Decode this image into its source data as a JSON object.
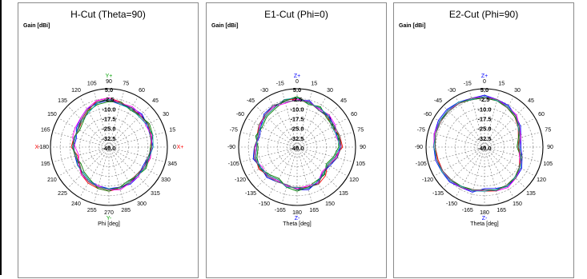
{
  "colors": {
    "series": [
      "#000000",
      "#ff0000",
      "#0000ff",
      "#008000",
      "#ff00ff",
      "#00a0a0",
      "#606060"
    ],
    "grid": "#808080",
    "axis_pos": "#0000ff",
    "axis_neg": "#ff0000",
    "y_axis_labels": "#00a000"
  },
  "chart_data": [
    {
      "type": "polar",
      "title": "H-Cut (Theta=90)",
      "ylabel": "Gain [dBi]",
      "xlabel": "Phi [deg]",
      "radial_ticks": [
        "5.0",
        "-2.5",
        "-10.0",
        "-17.5",
        "-25.0",
        "-32.5",
        "-40.0"
      ],
      "rlim": [
        -40,
        5
      ],
      "angle_labels": [
        "90",
        "75",
        "60",
        "45",
        "30",
        "15",
        "0",
        "345",
        "330",
        "315",
        "300",
        "285",
        "270",
        "255",
        "240",
        "225",
        "210",
        "195",
        "-180",
        "165",
        "150",
        "135",
        "120",
        "105"
      ],
      "axis_markers": {
        "top": "Y+",
        "bottom": "Y-",
        "left": "X-",
        "right": "X+"
      },
      "series": [
        {
          "values": [
            -3,
            -5,
            -6,
            -5,
            -5,
            -6,
            -7,
            -8,
            -9,
            -9,
            -8,
            -7,
            -7,
            -8,
            -9,
            -11,
            -13,
            -14,
            -12,
            -13,
            -12,
            -10,
            -7,
            -4
          ]
        },
        {
          "values": [
            -2,
            -4,
            -6,
            -6,
            -5,
            -6,
            -8,
            -7,
            -8,
            -10,
            -9,
            -7,
            -6,
            -7,
            -8,
            -10,
            -14,
            -15,
            -11,
            -12,
            -13,
            -11,
            -8,
            -3
          ]
        },
        {
          "values": [
            -4,
            -6,
            -5,
            -4,
            -6,
            -7,
            -6,
            -9,
            -10,
            -8,
            -7,
            -8,
            -8,
            -9,
            -10,
            -12,
            -12,
            -13,
            -13,
            -14,
            -11,
            -9,
            -6,
            -5
          ]
        },
        {
          "values": [
            -5,
            -4,
            -7,
            -6,
            -4,
            -5,
            -8,
            -8,
            -7,
            -9,
            -10,
            -8,
            -6,
            -7,
            -11,
            -13,
            -15,
            -13,
            -12,
            -12,
            -14,
            -12,
            -8,
            -6
          ]
        },
        {
          "values": [
            -2,
            -5,
            -4,
            -5,
            -7,
            -6,
            -7,
            -7,
            -9,
            -8,
            -8,
            -6,
            -7,
            -9,
            -9,
            -10,
            -13,
            -16,
            -14,
            -11,
            -10,
            -9,
            -6,
            -3
          ]
        },
        {
          "values": [
            -3,
            -6,
            -6,
            -7,
            -6,
            -5,
            -6,
            -8,
            -8,
            -9,
            -9,
            -7,
            -8,
            -8,
            -10,
            -12,
            -12,
            -14,
            -12,
            -13,
            -12,
            -11,
            -9,
            -5
          ]
        },
        {
          "values": [
            -4,
            -5,
            -5,
            -6,
            -5,
            -7,
            -7,
            -9,
            -9,
            -10,
            -8,
            -8,
            -7,
            -8,
            -9,
            -11,
            -14,
            -13,
            -13,
            -12,
            -13,
            -10,
            -7,
            -4
          ]
        }
      ]
    },
    {
      "type": "polar",
      "title": "E1-Cut (Phi=0)",
      "ylabel": "Gain [dBi]",
      "xlabel": "Theta [deg]",
      "radial_ticks": [
        "5.0",
        "-2.5",
        "-10.0",
        "-17.5",
        "-25.0",
        "-32.5",
        "-40.0"
      ],
      "rlim": [
        -40,
        5
      ],
      "angle_labels": [
        "0",
        "15",
        "30",
        "45",
        "60",
        "75",
        "90",
        "105",
        "120",
        "135",
        "150",
        "165",
        "180",
        "-165",
        "-150",
        "-135",
        "-120",
        "-105",
        "-90",
        "-75",
        "-60",
        "-45",
        "-30",
        "-15"
      ],
      "axis_markers": {
        "top": "Z+",
        "bottom": "Z-"
      },
      "series": [
        {
          "values": [
            -2,
            -4,
            -6,
            -5,
            -8,
            -7,
            -6,
            -9,
            -12,
            -11,
            -8,
            -7,
            -8,
            -9,
            -10,
            -8,
            -7,
            -6,
            -8,
            -9,
            -7,
            -5,
            -4,
            -3
          ]
        },
        {
          "values": [
            -3,
            -5,
            -5,
            -7,
            -9,
            -6,
            -5,
            -10,
            -13,
            -9,
            -7,
            -8,
            -9,
            -8,
            -11,
            -9,
            -6,
            -7,
            -9,
            -8,
            -6,
            -6,
            -5,
            -2
          ]
        },
        {
          "values": [
            -4,
            -3,
            -7,
            -6,
            -7,
            -8,
            -7,
            -8,
            -11,
            -12,
            -9,
            -6,
            -7,
            -10,
            -9,
            -7,
            -8,
            -5,
            -7,
            -10,
            -8,
            -4,
            -3,
            -4
          ]
        },
        {
          "values": [
            -1,
            -6,
            -4,
            -8,
            -8,
            -7,
            -8,
            -11,
            -14,
            -10,
            -10,
            -8,
            -6,
            -8,
            -12,
            -10,
            -7,
            -8,
            -10,
            -7,
            -9,
            -7,
            -6,
            -3
          ]
        },
        {
          "values": [
            -3,
            -4,
            -6,
            -5,
            -6,
            -9,
            -6,
            -9,
            -12,
            -13,
            -8,
            -9,
            -8,
            -9,
            -10,
            -8,
            -9,
            -6,
            -8,
            -9,
            -7,
            -5,
            -4,
            -5
          ]
        },
        {
          "values": [
            -2,
            -5,
            -5,
            -6,
            -9,
            -8,
            -7,
            -10,
            -13,
            -11,
            -9,
            -7,
            -9,
            -8,
            -11,
            -9,
            -8,
            -7,
            -9,
            -8,
            -8,
            -6,
            -5,
            -2
          ]
        },
        {
          "values": [
            -4,
            -4,
            -7,
            -7,
            -7,
            -6,
            -6,
            -8,
            -12,
            -12,
            -7,
            -8,
            -7,
            -10,
            -9,
            -8,
            -7,
            -6,
            -7,
            -9,
            -6,
            -5,
            -3,
            -4
          ]
        }
      ]
    },
    {
      "type": "polar",
      "title": "E2-Cut (Phi=90)",
      "ylabel": "Gain [dBi]",
      "xlabel": "Theta [deg]",
      "radial_ticks": [
        "5.0",
        "-2.5",
        "-10.0",
        "-17.5",
        "-25.0",
        "-32.5",
        "-40.0"
      ],
      "rlim": [
        -40,
        5
      ],
      "angle_labels": [
        "0",
        "15",
        "30",
        "45",
        "60",
        "75",
        "90",
        "105",
        "120",
        "135",
        "150",
        "165",
        "180",
        "-165",
        "-150",
        "-135",
        "-120",
        "-105",
        "-90",
        "-75",
        "-60",
        "-45",
        "-30",
        "-15"
      ],
      "axis_markers": {
        "top": "Z+",
        "bottom": "Z-"
      },
      "series": [
        {
          "values": [
            -1,
            -2,
            -4,
            -6,
            -9,
            -12,
            -13,
            -11,
            -8,
            -6,
            -5,
            -6,
            -7,
            -5,
            -4,
            -3,
            -3,
            -2,
            -1,
            0,
            0,
            0,
            -1,
            -1
          ]
        },
        {
          "values": [
            -2,
            -3,
            -5,
            -7,
            -10,
            -13,
            -14,
            -12,
            -9,
            -7,
            -6,
            -5,
            -6,
            -6,
            -5,
            -4,
            -3,
            -3,
            -2,
            -1,
            -1,
            0,
            -1,
            -2
          ]
        },
        {
          "values": [
            0,
            -2,
            -3,
            -6,
            -8,
            -11,
            -12,
            -10,
            -7,
            -6,
            -5,
            -7,
            -8,
            -4,
            -4,
            -2,
            -2,
            -1,
            -1,
            0,
            1,
            1,
            0,
            -1
          ]
        },
        {
          "values": [
            -2,
            -3,
            -5,
            -7,
            -9,
            -13,
            -15,
            -11,
            -9,
            -7,
            -6,
            -6,
            -7,
            -6,
            -5,
            -4,
            -3,
            -2,
            -2,
            -1,
            0,
            -1,
            -1,
            -2
          ]
        },
        {
          "values": [
            -1,
            -2,
            -4,
            -5,
            -9,
            -11,
            -13,
            -12,
            -8,
            -6,
            -4,
            -5,
            -7,
            -5,
            -4,
            -3,
            -3,
            -2,
            -1,
            0,
            0,
            0,
            -1,
            -1
          ]
        },
        {
          "values": [
            -1,
            -3,
            -4,
            -6,
            -10,
            -12,
            -13,
            -11,
            -8,
            -7,
            -5,
            -6,
            -6,
            -5,
            -5,
            -3,
            -2,
            -2,
            -1,
            -1,
            0,
            0,
            0,
            -2
          ]
        },
        {
          "values": [
            -2,
            -2,
            -5,
            -6,
            -9,
            -12,
            -14,
            -10,
            -9,
            -6,
            -6,
            -5,
            -7,
            -6,
            -4,
            -4,
            -3,
            -2,
            -2,
            -1,
            -1,
            -1,
            -1,
            -1
          ]
        }
      ]
    }
  ]
}
